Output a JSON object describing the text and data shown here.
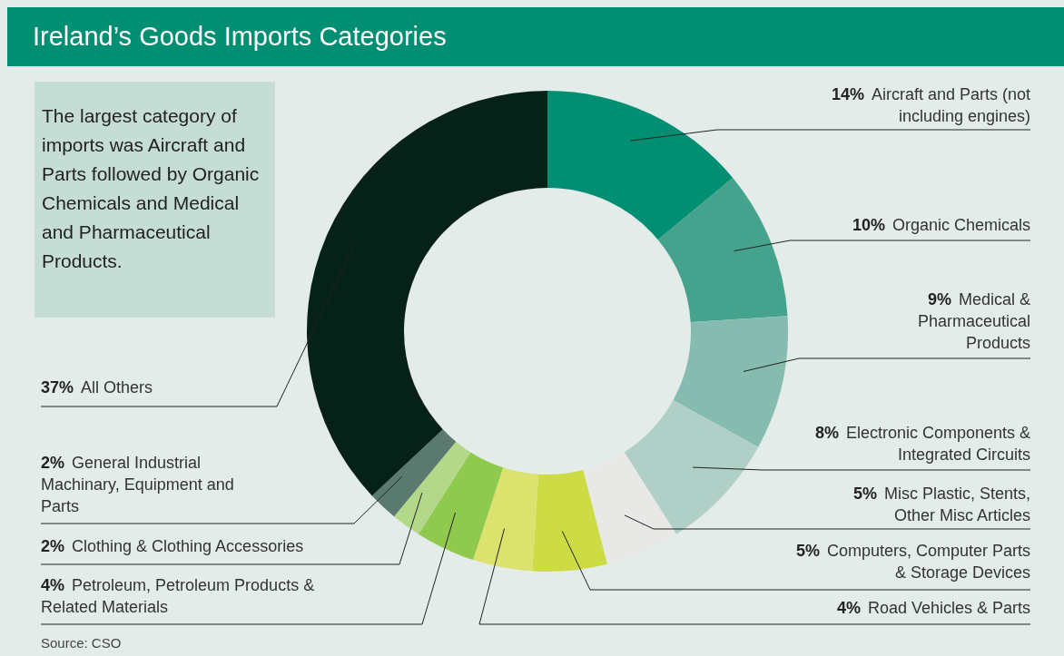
{
  "chart_data": {
    "type": "donut",
    "title": "Ireland’s Goods Imports Categories",
    "categories": [
      "Aircraft and Parts (not including engines)",
      "Organic Chemicals",
      "Medical & Pharmaceutical Products",
      "Electronic Components & Integrated Circuits",
      "Misc Plastic, Stents, Other Misc Articles",
      "Computers, Computer Parts &  Storage Devices",
      "Road Vehicles & Parts",
      "Petroleum, Petroleum Products & Related Materials",
      "Clothing & Clothing Accessories",
      "General Industrial Machinary, Equipment and Parts",
      "All Others"
    ],
    "values": [
      14,
      10,
      9,
      8,
      5,
      5,
      4,
      4,
      2,
      2,
      37
    ],
    "value_labels": [
      "14%",
      "10%",
      "9%",
      "8%",
      "5%",
      "5%",
      "4%",
      "4%",
      "2%",
      "2%",
      "37%"
    ],
    "colors": [
      "#008f72",
      "#45a28d",
      "#86bbb0",
      "#b0cfc7",
      "#e8e8e6",
      "#cddc45",
      "#dbe26e",
      "#8fc94e",
      "#b3d88a",
      "#5a7a70",
      "#062118"
    ],
    "annotations": [
      "The largest category of imports was Aircraft and Parts followed by Organic Chemicals and Medical and Pharmaceutical Products.",
      "Source: CSO"
    ]
  }
}
